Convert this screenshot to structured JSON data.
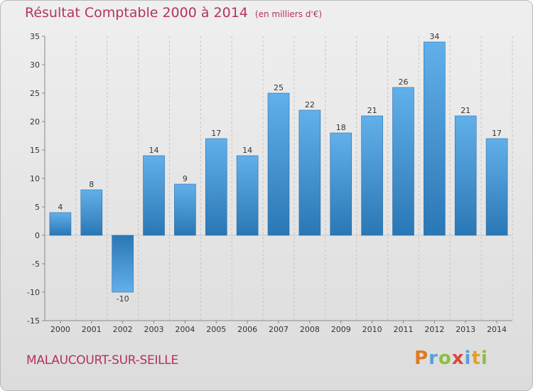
{
  "header": {
    "title": "Résultat Comptable 2000 à 2014",
    "unit": "(en milliers d'€)"
  },
  "footer": {
    "commune": "MALAUCOURT-SUR-SEILLE",
    "brand": "Proxiti",
    "brand_letters": [
      "P",
      "r",
      "o",
      "x",
      "i",
      "t",
      "i"
    ],
    "brand_colors": [
      "#e07b22",
      "#5a9fd6",
      "#8cbf3f",
      "#d84a3a",
      "#5a9fd6",
      "#e0a030",
      "#8cbf3f"
    ]
  },
  "chart_data": {
    "type": "bar",
    "title": "Résultat Comptable 2000 à 2014",
    "subtitle": "(en milliers d'€)",
    "xlabel": "",
    "ylabel": "",
    "categories": [
      "2000",
      "2001",
      "2002",
      "2003",
      "2004",
      "2005",
      "2006",
      "2007",
      "2008",
      "2009",
      "2010",
      "2011",
      "2012",
      "2013",
      "2014"
    ],
    "values": [
      4,
      8,
      -10,
      14,
      9,
      17,
      14,
      25,
      22,
      18,
      21,
      26,
      34,
      21,
      17
    ],
    "ylim": [
      -15,
      35
    ],
    "yticks": [
      35,
      30,
      25,
      20,
      15,
      10,
      5,
      0,
      -5,
      -10,
      -15
    ],
    "grid": "vertical-dashed",
    "bar_color_top": "#62b0ea",
    "bar_color_bottom": "#2a77b5"
  }
}
